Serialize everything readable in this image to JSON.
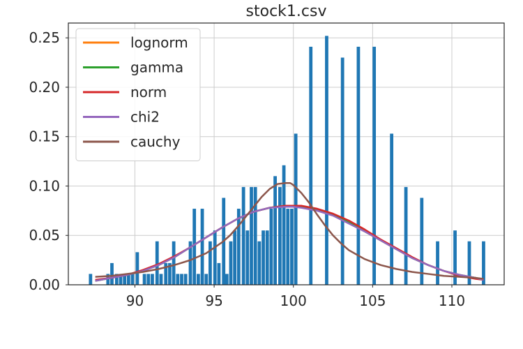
{
  "chart_data": {
    "type": "bar",
    "title": "stock1.csv",
    "xlabel": "",
    "ylabel": "",
    "xlim": [
      85.8,
      113.3
    ],
    "ylim": [
      0,
      0.265
    ],
    "xticks": [
      90,
      95,
      100,
      105,
      110
    ],
    "yticks": [
      0.0,
      0.05,
      0.1,
      0.15,
      0.2,
      0.25
    ],
    "xtick_labels": [
      "90",
      "95",
      "100",
      "105",
      "110"
    ],
    "ytick_labels": [
      "0.00",
      "0.05",
      "0.10",
      "0.15",
      "0.20",
      "0.25"
    ],
    "grid": true,
    "legend_position": "upper-left",
    "bar_color": "#1f77b4",
    "bar_width": 0.21,
    "histogram": {
      "x": [
        87.2,
        88.3,
        88.55,
        88.85,
        89.1,
        89.35,
        89.6,
        89.85,
        90.15,
        90.6,
        90.85,
        91.1,
        91.4,
        91.65,
        91.95,
        92.2,
        92.45,
        92.7,
        92.95,
        93.2,
        93.5,
        93.75,
        94.0,
        94.25,
        94.5,
        94.75,
        95.05,
        95.3,
        95.6,
        95.8,
        96.05,
        96.3,
        96.55,
        96.85,
        97.1,
        97.35,
        97.6,
        97.85,
        98.1,
        98.35,
        98.6,
        98.85,
        99.15,
        99.4,
        99.65,
        99.9,
        100.15,
        101.1,
        102.1,
        103.1,
        104.1,
        105.1,
        106.2,
        107.1,
        108.1,
        109.1,
        110.2,
        111.1,
        112.0
      ],
      "values": [
        0.011,
        0.011,
        0.022,
        0.011,
        0.011,
        0.011,
        0.011,
        0.011,
        0.033,
        0.011,
        0.011,
        0.011,
        0.044,
        0.011,
        0.022,
        0.022,
        0.044,
        0.011,
        0.011,
        0.011,
        0.044,
        0.077,
        0.011,
        0.077,
        0.011,
        0.044,
        0.055,
        0.022,
        0.088,
        0.011,
        0.044,
        0.055,
        0.077,
        0.099,
        0.055,
        0.099,
        0.099,
        0.044,
        0.055,
        0.055,
        0.077,
        0.11,
        0.099,
        0.121,
        0.077,
        0.077,
        0.153,
        0.241,
        0.252,
        0.23,
        0.241,
        0.241,
        0.153,
        0.099,
        0.088,
        0.044,
        0.055,
        0.044,
        0.044
      ]
    },
    "series": [
      {
        "name": "lognorm",
        "color": "#ff7f0e",
        "x": [
          87.5,
          88.5,
          89.5,
          90.5,
          91.5,
          92.5,
          93.5,
          94.5,
          95.5,
          96.5,
          97.5,
          98.5,
          99.5,
          100.0,
          100.5,
          101.5,
          102.5,
          103.5,
          104.5,
          105.5,
          106.5,
          107.5,
          108.5,
          109.5,
          110.5,
          111.5,
          112.0
        ],
        "y": [
          0.004,
          0.007,
          0.01,
          0.014,
          0.02,
          0.028,
          0.038,
          0.048,
          0.058,
          0.067,
          0.074,
          0.078,
          0.08,
          0.08,
          0.079,
          0.076,
          0.071,
          0.063,
          0.054,
          0.045,
          0.036,
          0.027,
          0.02,
          0.014,
          0.01,
          0.007,
          0.005
        ]
      },
      {
        "name": "gamma",
        "color": "#2ca02c",
        "x": [
          87.5,
          88.5,
          89.5,
          90.5,
          91.5,
          92.5,
          93.5,
          94.5,
          95.5,
          96.5,
          97.5,
          98.5,
          99.5,
          100.0,
          100.5,
          101.5,
          102.5,
          103.5,
          104.5,
          105.5,
          106.5,
          107.5,
          108.5,
          109.5,
          110.5,
          111.5,
          112.0
        ],
        "y": [
          0.004,
          0.007,
          0.01,
          0.014,
          0.02,
          0.028,
          0.038,
          0.048,
          0.058,
          0.067,
          0.074,
          0.078,
          0.08,
          0.08,
          0.079,
          0.076,
          0.071,
          0.063,
          0.054,
          0.045,
          0.036,
          0.027,
          0.02,
          0.014,
          0.01,
          0.007,
          0.005
        ]
      },
      {
        "name": "norm",
        "color": "#d62728",
        "x": [
          87.5,
          88.5,
          89.5,
          90.5,
          91.5,
          92.5,
          93.5,
          94.5,
          95.5,
          96.5,
          97.5,
          98.5,
          99.5,
          100.0,
          100.5,
          101.5,
          102.5,
          103.5,
          104.5,
          105.5,
          106.5,
          107.5,
          108.5,
          109.5,
          110.5,
          111.5,
          112.0
        ],
        "y": [
          0.005,
          0.007,
          0.01,
          0.015,
          0.021,
          0.029,
          0.038,
          0.048,
          0.058,
          0.067,
          0.074,
          0.078,
          0.08,
          0.08,
          0.08,
          0.077,
          0.072,
          0.065,
          0.056,
          0.046,
          0.037,
          0.028,
          0.02,
          0.014,
          0.009,
          0.006,
          0.005
        ]
      },
      {
        "name": "chi2",
        "color": "#9467bd",
        "x": [
          87.5,
          88.5,
          89.5,
          90.5,
          91.5,
          92.5,
          93.5,
          94.5,
          95.5,
          96.5,
          97.5,
          98.5,
          99.5,
          100.0,
          100.5,
          101.5,
          102.5,
          103.5,
          104.5,
          105.5,
          106.5,
          107.5,
          108.5,
          109.5,
          110.5,
          111.5,
          112.0
        ],
        "y": [
          0.004,
          0.007,
          0.01,
          0.014,
          0.02,
          0.028,
          0.038,
          0.048,
          0.058,
          0.067,
          0.074,
          0.078,
          0.079,
          0.079,
          0.078,
          0.075,
          0.07,
          0.062,
          0.054,
          0.045,
          0.036,
          0.027,
          0.02,
          0.014,
          0.01,
          0.007,
          0.005
        ]
      },
      {
        "name": "cauchy",
        "color": "#8c564b",
        "x": [
          87.5,
          88.5,
          89.5,
          90.5,
          91.5,
          92.5,
          93.5,
          94.5,
          95.5,
          96.0,
          96.5,
          97.0,
          97.5,
          98.0,
          98.5,
          99.0,
          99.5,
          99.8,
          100.0,
          100.5,
          101.0,
          101.5,
          102.0,
          102.5,
          103.0,
          103.5,
          104.5,
          105.5,
          106.5,
          107.5,
          108.5,
          109.5,
          110.5,
          111.5,
          112.0
        ],
        "y": [
          0.008,
          0.009,
          0.011,
          0.013,
          0.016,
          0.02,
          0.025,
          0.032,
          0.043,
          0.05,
          0.059,
          0.069,
          0.079,
          0.089,
          0.097,
          0.102,
          0.103,
          0.103,
          0.101,
          0.093,
          0.083,
          0.071,
          0.06,
          0.05,
          0.042,
          0.035,
          0.026,
          0.02,
          0.016,
          0.013,
          0.011,
          0.009,
          0.008,
          0.007,
          0.006
        ]
      }
    ]
  }
}
